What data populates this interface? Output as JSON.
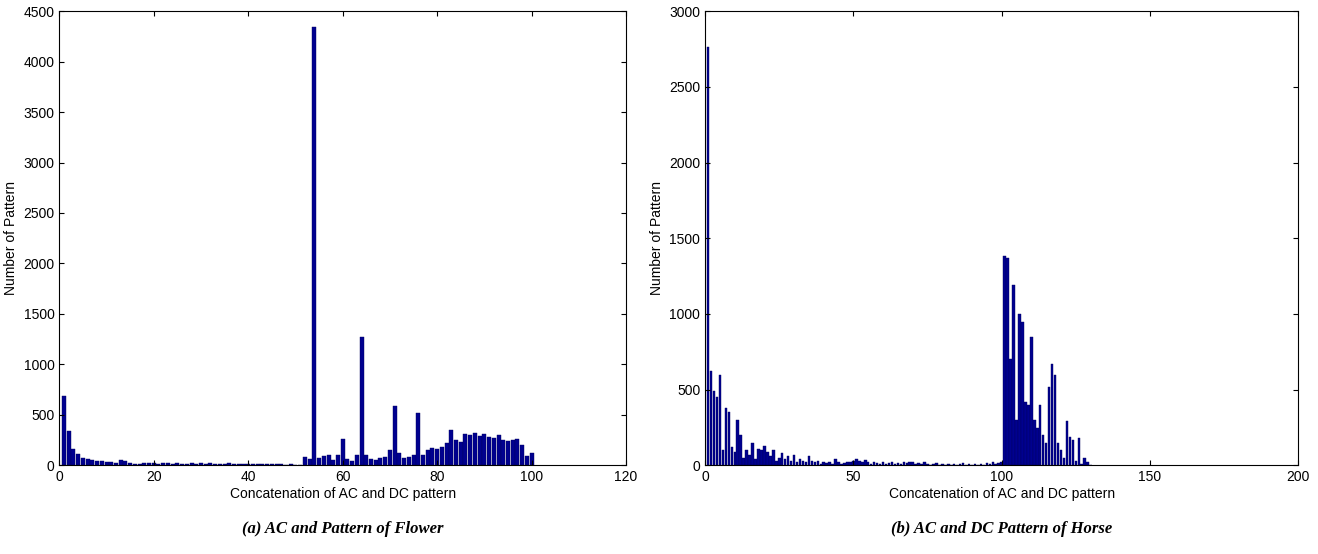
{
  "chart_data": [
    {
      "type": "bar",
      "caption": "(a) AC and Pattern of Flower",
      "x_label": "Concatenation of AC and DC pattern",
      "y_label": "Number of Pattern",
      "color": "#00008f",
      "xlim": [
        0,
        120
      ],
      "xticks": [
        0,
        20,
        40,
        60,
        80,
        100,
        120
      ],
      "ylim": [
        0,
        4500
      ],
      "yticks": [
        0,
        500,
        1000,
        1500,
        2000,
        2500,
        3000,
        3500,
        4000,
        4500
      ],
      "x": [
        1,
        2,
        3,
        4,
        5,
        6,
        7,
        8,
        9,
        10,
        11,
        12,
        13,
        14,
        15,
        16,
        17,
        18,
        19,
        20,
        21,
        22,
        23,
        24,
        25,
        26,
        27,
        28,
        29,
        30,
        31,
        32,
        33,
        34,
        35,
        36,
        37,
        38,
        39,
        40,
        41,
        42,
        43,
        44,
        45,
        46,
        47,
        48,
        49,
        50,
        51,
        52,
        53,
        54,
        55,
        56,
        57,
        58,
        59,
        60,
        61,
        62,
        63,
        64,
        65,
        66,
        67,
        68,
        69,
        70,
        71,
        72,
        73,
        74,
        75,
        76,
        77,
        78,
        79,
        80,
        81,
        82,
        83,
        84,
        85,
        86,
        87,
        88,
        89,
        90,
        91,
        92,
        93,
        94,
        95,
        96,
        97,
        98,
        99,
        100
      ],
      "values": [
        690,
        340,
        160,
        110,
        70,
        60,
        50,
        45,
        40,
        35,
        30,
        25,
        55,
        40,
        20,
        15,
        15,
        20,
        25,
        20,
        15,
        25,
        20,
        15,
        20,
        15,
        10,
        25,
        15,
        20,
        15,
        25,
        10,
        15,
        10,
        20,
        10,
        15,
        10,
        10,
        15,
        10,
        15,
        10,
        10,
        15,
        10,
        5,
        10,
        5,
        5,
        80,
        60,
        4340,
        70,
        90,
        100,
        50,
        100,
        260,
        60,
        40,
        100,
        1270,
        100,
        60,
        50,
        70,
        80,
        150,
        590,
        120,
        70,
        80,
        100,
        520,
        100,
        150,
        170,
        160,
        180,
        220,
        350,
        250,
        230,
        310,
        300,
        320,
        290,
        310,
        280,
        270,
        300,
        250,
        240,
        250,
        260,
        200,
        90,
        120
      ]
    },
    {
      "type": "bar",
      "caption": "(b) AC and DC Pattern of Horse",
      "x_label": "Concatenation of AC and DC pattern",
      "y_label": "Number of Pattern",
      "color": "#00008f",
      "xlim": [
        0,
        200
      ],
      "xticks": [
        0,
        50,
        100,
        150,
        200
      ],
      "ylim": [
        0,
        3000
      ],
      "yticks": [
        0,
        500,
        1000,
        1500,
        2000,
        2500,
        3000
      ],
      "x": [
        1,
        2,
        3,
        4,
        5,
        6,
        7,
        8,
        9,
        10,
        11,
        12,
        13,
        14,
        15,
        16,
        17,
        18,
        19,
        20,
        21,
        22,
        23,
        24,
        25,
        26,
        27,
        28,
        29,
        30,
        31,
        32,
        33,
        34,
        35,
        36,
        37,
        38,
        39,
        40,
        41,
        42,
        43,
        44,
        45,
        46,
        47,
        48,
        49,
        50,
        51,
        52,
        53,
        54,
        55,
        56,
        57,
        58,
        59,
        60,
        61,
        62,
        63,
        64,
        65,
        66,
        67,
        68,
        69,
        70,
        71,
        72,
        73,
        74,
        75,
        76,
        77,
        78,
        79,
        80,
        81,
        82,
        83,
        84,
        85,
        86,
        87,
        88,
        89,
        90,
        91,
        92,
        93,
        94,
        95,
        96,
        97,
        98,
        99,
        100,
        101,
        102,
        103,
        104,
        105,
        106,
        107,
        108,
        109,
        110,
        111,
        112,
        113,
        114,
        115,
        116,
        117,
        118,
        119,
        120,
        121,
        122,
        123,
        124,
        125,
        126,
        127,
        128,
        129,
        130
      ],
      "values": [
        2760,
        620,
        490,
        450,
        600,
        100,
        380,
        350,
        120,
        90,
        300,
        200,
        50,
        100,
        70,
        150,
        40,
        110,
        100,
        130,
        90,
        60,
        100,
        30,
        50,
        80,
        40,
        60,
        30,
        70,
        20,
        40,
        30,
        20,
        60,
        30,
        20,
        30,
        10,
        20,
        15,
        20,
        10,
        40,
        20,
        10,
        15,
        20,
        25,
        30,
        40,
        30,
        20,
        35,
        25,
        10,
        20,
        15,
        10,
        20,
        10,
        15,
        20,
        10,
        15,
        10,
        20,
        15,
        25,
        20,
        10,
        15,
        10,
        20,
        10,
        5,
        10,
        15,
        5,
        10,
        5,
        10,
        5,
        10,
        5,
        10,
        15,
        5,
        10,
        5,
        10,
        5,
        10,
        5,
        15,
        10,
        20,
        10,
        15,
        20,
        1380,
        1370,
        700,
        1190,
        300,
        1000,
        950,
        420,
        400,
        850,
        300,
        250,
        400,
        200,
        150,
        520,
        670,
        600,
        150,
        100,
        50,
        290,
        190,
        170,
        30,
        180,
        10,
        50,
        20,
        5
      ]
    }
  ]
}
